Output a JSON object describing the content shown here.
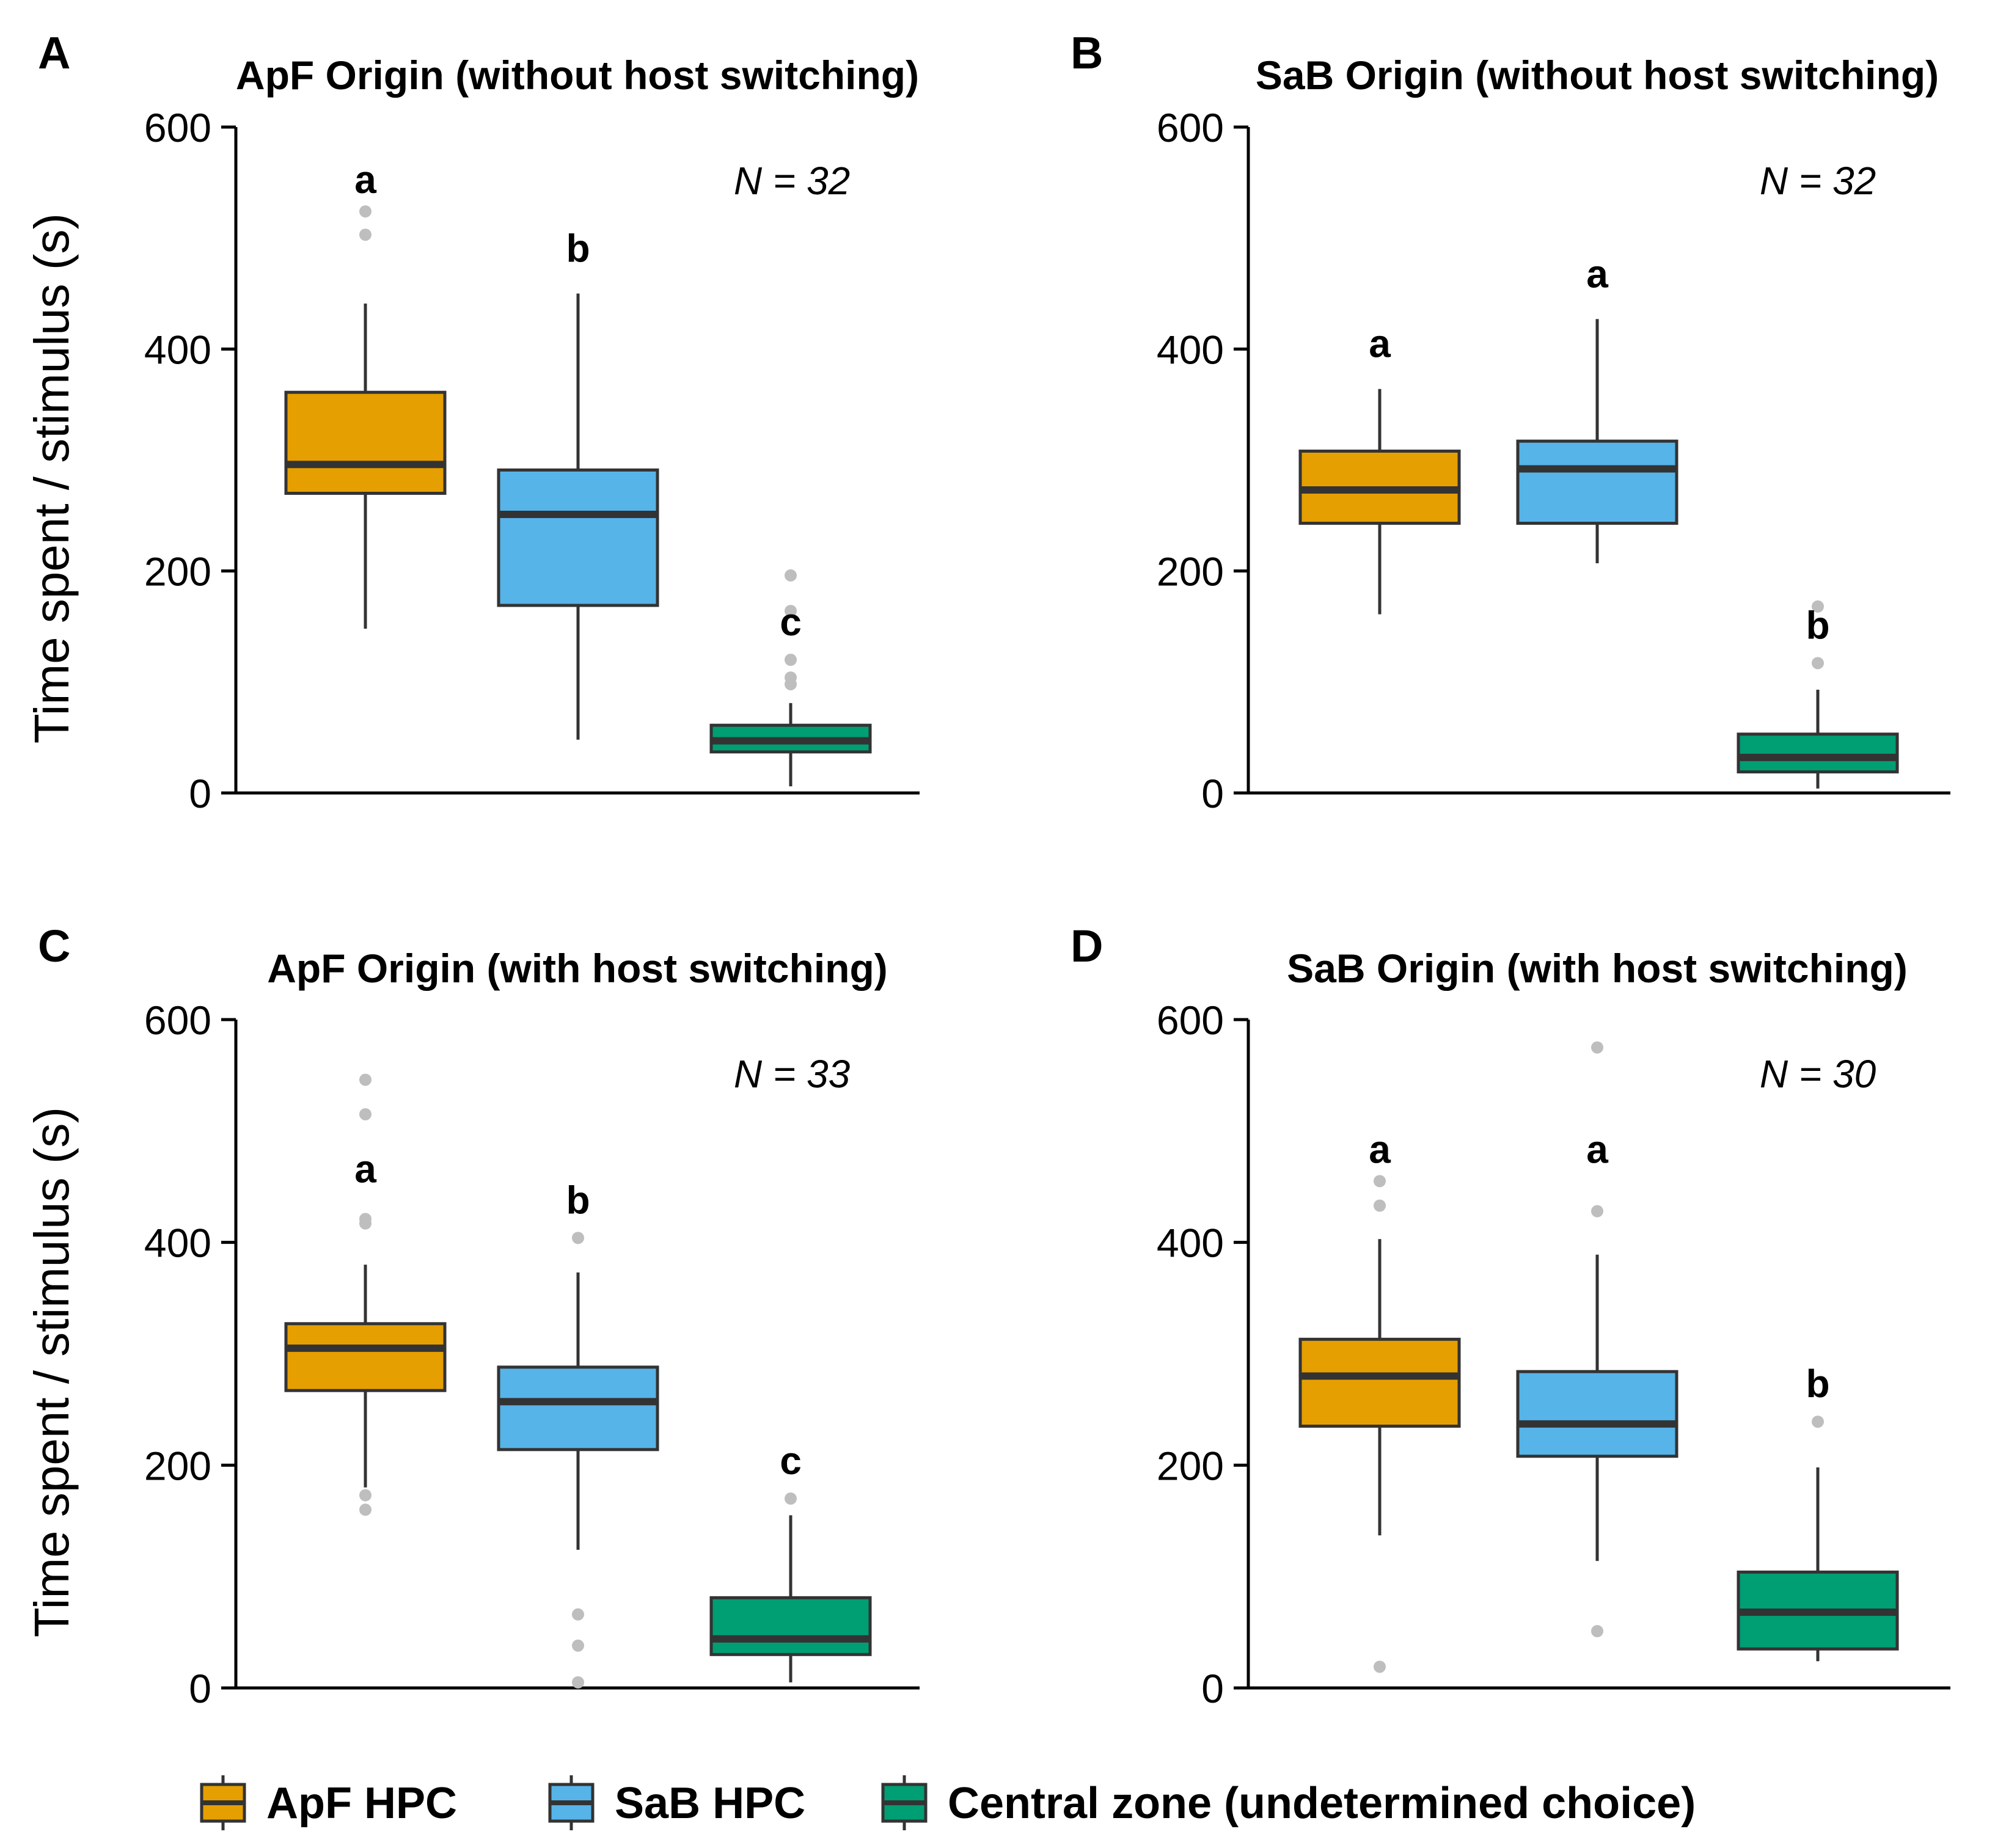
{
  "chart_data": [
    {
      "type": "box",
      "panel_label": "A",
      "title": "ApF Origin (without host switching)",
      "ylabel": "Time spent / stimulus (s)",
      "ylim": [
        0,
        600
      ],
      "yticks": [
        0,
        200,
        400,
        600
      ],
      "n_label": "N = 32",
      "boxes": [
        {
          "series": "ApF HPC",
          "letter": "a",
          "whisker_low": 148,
          "q1": 270,
          "median": 296,
          "q3": 361,
          "whisker_high": 441,
          "outliers": [
            503,
            524
          ]
        },
        {
          "series": "SaB HPC",
          "letter": "b",
          "whisker_low": 48,
          "q1": 169,
          "median": 251,
          "q3": 291,
          "whisker_high": 450,
          "outliers": []
        },
        {
          "series": "Central zone (undetermined choice)",
          "letter": "c",
          "whisker_low": 6,
          "q1": 37,
          "median": 47,
          "q3": 61,
          "whisker_high": 81,
          "outliers": [
            98,
            104,
            120,
            164,
            196
          ]
        }
      ]
    },
    {
      "type": "box",
      "panel_label": "B",
      "title": "SaB Origin (without host switching)",
      "ylabel": "",
      "ylim": [
        0,
        600
      ],
      "yticks": [
        0,
        200,
        400,
        600
      ],
      "n_label": "N = 32",
      "boxes": [
        {
          "series": "ApF HPC",
          "letter": "a",
          "whisker_low": 161,
          "q1": 243,
          "median": 273,
          "q3": 308,
          "whisker_high": 364,
          "outliers": []
        },
        {
          "series": "SaB HPC",
          "letter": "a",
          "whisker_low": 207,
          "q1": 243,
          "median": 292,
          "q3": 317,
          "whisker_high": 427,
          "outliers": []
        },
        {
          "series": "Central zone (undetermined choice)",
          "letter": "b",
          "whisker_low": 4,
          "q1": 19,
          "median": 32,
          "q3": 53,
          "whisker_high": 93,
          "outliers": [
            117,
            168
          ]
        }
      ]
    },
    {
      "type": "box",
      "panel_label": "C",
      "title": "ApF Origin (with host switching)",
      "ylabel": "Time spent / stimulus (s)",
      "ylim": [
        0,
        600
      ],
      "yticks": [
        0,
        200,
        400,
        600
      ],
      "n_label": "N = 33",
      "boxes": [
        {
          "series": "ApF HPC",
          "letter": "a",
          "whisker_low": 180,
          "q1": 267,
          "median": 305,
          "q3": 327,
          "whisker_high": 380,
          "outliers": [
            160,
            173,
            417,
            421,
            515,
            546
          ]
        },
        {
          "series": "SaB HPC",
          "letter": "b",
          "whisker_low": 124,
          "q1": 214,
          "median": 257,
          "q3": 288,
          "whisker_high": 373,
          "outliers": [
            5,
            38,
            66,
            404
          ]
        },
        {
          "series": "Central zone (undetermined choice)",
          "letter": "c",
          "whisker_low": 5,
          "q1": 30,
          "median": 44,
          "q3": 81,
          "whisker_high": 155,
          "outliers": [
            170
          ]
        }
      ]
    },
    {
      "type": "box",
      "panel_label": "D",
      "title": "SaB Origin (with host switching)",
      "ylabel": "",
      "ylim": [
        0,
        600
      ],
      "yticks": [
        0,
        200,
        400,
        600
      ],
      "n_label": "N = 30",
      "boxes": [
        {
          "series": "ApF HPC",
          "letter": "a",
          "whisker_low": 137,
          "q1": 235,
          "median": 280,
          "q3": 313,
          "whisker_high": 403,
          "outliers": [
            19,
            433,
            455
          ]
        },
        {
          "series": "SaB HPC",
          "letter": "a",
          "whisker_low": 114,
          "q1": 208,
          "median": 237,
          "q3": 284,
          "whisker_high": 389,
          "outliers": [
            51,
            428,
            575
          ]
        },
        {
          "series": "Central zone (undetermined choice)",
          "letter": "b",
          "whisker_low": 24,
          "q1": 35,
          "median": 68,
          "q3": 104,
          "whisker_high": 198,
          "outliers": [
            239
          ]
        }
      ]
    }
  ],
  "legend": {
    "position": "bottom",
    "items": [
      {
        "label": "ApF HPC",
        "color": "#E69F00"
      },
      {
        "label": "SaB HPC",
        "color": "#56B4E9"
      },
      {
        "label": "Central zone (undetermined choice)",
        "color": "#009E73"
      }
    ]
  },
  "colors": {
    "ApF HPC": "#E69F00",
    "SaB HPC": "#56B4E9",
    "Central zone (undetermined choice)": "#009E73",
    "outline": "#333333",
    "outlier": "#BEBEBE",
    "axis": "#000000"
  }
}
